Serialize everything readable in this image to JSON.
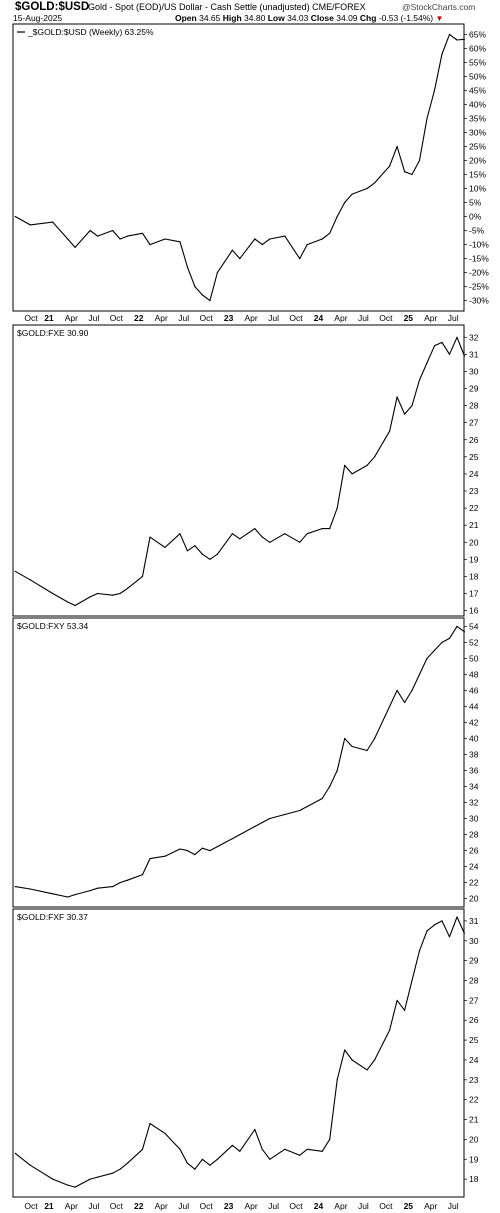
{
  "header": {
    "symbol": "$GOLD:$USD",
    "description": "Gold - Spot (EOD)/US Dollar - Cash Settle (unadjusted)  CME/FOREX",
    "date": "15-Aug-2025",
    "logo": "@StockCharts.com",
    "open_label": "Open",
    "open": "34.65",
    "high_label": "High",
    "high": "34.80",
    "low_label": "Low",
    "low": "34.03",
    "close_label": "Close",
    "close": "34.09",
    "chg_label": "Chg",
    "chg": "-0.53 (-1.54%)",
    "chg_icon": "down-triangle-icon",
    "down_color": "#c00000"
  },
  "x_axis": {
    "ticks": [
      {
        "label": "Oct",
        "t": 0.8
      },
      {
        "label": "21",
        "t": 1.0,
        "bold": true
      },
      {
        "label": "Apr",
        "t": 1.25
      },
      {
        "label": "Jul",
        "t": 1.5
      },
      {
        "label": "Oct",
        "t": 1.75
      },
      {
        "label": "22",
        "t": 2.0,
        "bold": true
      },
      {
        "label": "Apr",
        "t": 2.25
      },
      {
        "label": "Jul",
        "t": 2.5
      },
      {
        "label": "Oct",
        "t": 2.75
      },
      {
        "label": "23",
        "t": 3.0,
        "bold": true
      },
      {
        "label": "Apr",
        "t": 3.25
      },
      {
        "label": "Jul",
        "t": 3.5
      },
      {
        "label": "Oct",
        "t": 3.75
      },
      {
        "label": "24",
        "t": 4.0,
        "bold": true
      },
      {
        "label": "Apr",
        "t": 4.25
      },
      {
        "label": "Jul",
        "t": 4.5
      },
      {
        "label": "Oct",
        "t": 4.75
      },
      {
        "label": "25",
        "t": 5.0,
        "bold": true
      },
      {
        "label": "Apr",
        "t": 5.25
      },
      {
        "label": "Jul",
        "t": 5.5
      }
    ]
  },
  "chart_data": [
    {
      "type": "line",
      "title": "_$GOLD:$USD (Weekly) 63.25%",
      "ylim": [
        -33,
        68
      ],
      "yticks": [
        -30,
        -25,
        -20,
        -15,
        -10,
        -5,
        0,
        5,
        10,
        15,
        20,
        25,
        30,
        35,
        40,
        45,
        50,
        55,
        60,
        65
      ],
      "ytick_labels": [
        "-30%",
        "-25%",
        "-20%",
        "-15%",
        "-10%",
        "-5%",
        "0%",
        "5%",
        "10%",
        "15%",
        "20%",
        "25%",
        "30%",
        "35%",
        "40%",
        "45%",
        "50%",
        "55%",
        "60%",
        "65%"
      ],
      "x": [
        "Aug 2020",
        "Oct 2020",
        "Jan 2021",
        "Mar 2021",
        "Apr 2021",
        "Jun 2021",
        "Jul 2021",
        "Sep 2021",
        "Oct 2021",
        "Nov 2021",
        "Jan 2022",
        "Feb 2022",
        "Apr 2022",
        "Jun 2022",
        "Jul 2022",
        "Aug 2022",
        "Sep 2022",
        "Oct 2022",
        "Nov 2022",
        "Jan 2023",
        "Feb 2023",
        "Apr 2023",
        "May 2023",
        "Jun 2023",
        "Aug 2023",
        "Oct 2023",
        "Nov 2023",
        "Jan 2024",
        "Feb 2024",
        "Mar 2024",
        "Apr 2024",
        "May 2024",
        "Jul 2024",
        "Aug 2024",
        "Oct 2024",
        "Nov 2024",
        "Dec 2024",
        "Jan 2025",
        "Feb 2025",
        "Mar 2025",
        "Apr 2025",
        "May 2025",
        "Jun 2025",
        "Jul 2025",
        "Aug 2025"
      ],
      "values": [
        0,
        -3,
        -2,
        -8,
        -11,
        -5,
        -7,
        -5,
        -8,
        -7,
        -6,
        -10,
        -8,
        -9,
        -18,
        -25,
        -28,
        -30,
        -20,
        -12,
        -15,
        -8,
        -10,
        -8,
        -7,
        -15,
        -10,
        -8,
        -6,
        0,
        5,
        8,
        10,
        12,
        18,
        25,
        16,
        15,
        20,
        35,
        45,
        58,
        65,
        63,
        63.25
      ]
    },
    {
      "type": "line",
      "title": "$GOLD:FXE 30.90",
      "ylim": [
        15.8,
        32.6
      ],
      "yticks": [
        16,
        17,
        18,
        19,
        20,
        21,
        22,
        23,
        24,
        25,
        26,
        27,
        28,
        29,
        30,
        31,
        32
      ],
      "ytick_labels": [
        "16",
        "17",
        "18",
        "19",
        "20",
        "21",
        "22",
        "23",
        "24",
        "25",
        "26",
        "27",
        "28",
        "29",
        "30",
        "31",
        "32"
      ],
      "x": [
        "Aug 2020",
        "Oct 2020",
        "Jan 2021",
        "Mar 2021",
        "Apr 2021",
        "Jun 2021",
        "Jul 2021",
        "Sep 2021",
        "Oct 2021",
        "Nov 2021",
        "Jan 2022",
        "Feb 2022",
        "Apr 2022",
        "Jun 2022",
        "Jul 2022",
        "Aug 2022",
        "Sep 2022",
        "Oct 2022",
        "Nov 2022",
        "Jan 2023",
        "Feb 2023",
        "Apr 2023",
        "May 2023",
        "Jun 2023",
        "Aug 2023",
        "Oct 2023",
        "Nov 2023",
        "Jan 2024",
        "Feb 2024",
        "Mar 2024",
        "Apr 2024",
        "May 2024",
        "Jul 2024",
        "Aug 2024",
        "Oct 2024",
        "Nov 2024",
        "Dec 2024",
        "Jan 2025",
        "Feb 2025",
        "Mar 2025",
        "Apr 2025",
        "May 2025",
        "Jun 2025",
        "Jul 2025",
        "Aug 2025"
      ],
      "values": [
        18.3,
        17.8,
        17,
        16.5,
        16.3,
        16.8,
        17,
        16.9,
        17,
        17.3,
        18,
        20.3,
        19.7,
        20.5,
        19.5,
        19.8,
        19.3,
        19,
        19.3,
        20.5,
        20.2,
        20.8,
        20.3,
        20,
        20.5,
        20,
        20.5,
        20.8,
        20.8,
        22,
        24.5,
        24,
        24.5,
        25,
        26.5,
        28.5,
        27.5,
        28,
        29.5,
        30.5,
        31.5,
        31.7,
        31,
        32,
        30.9
      ]
    },
    {
      "type": "line",
      "title": "$GOLD:FXY 53.34",
      "ylim": [
        19.2,
        54.8
      ],
      "yticks": [
        20,
        22,
        24,
        26,
        28,
        30,
        32,
        34,
        36,
        38,
        40,
        42,
        44,
        46,
        48,
        50,
        52,
        54
      ],
      "ytick_labels": [
        "20",
        "22",
        "24",
        "26",
        "28",
        "30",
        "32",
        "34",
        "36",
        "38",
        "40",
        "42",
        "44",
        "46",
        "48",
        "50",
        "52",
        "54"
      ],
      "x": [
        "Aug 2020",
        "Oct 2020",
        "Jan 2021",
        "Mar 2021",
        "Apr 2021",
        "Jun 2021",
        "Jul 2021",
        "Sep 2021",
        "Oct 2021",
        "Nov 2021",
        "Jan 2022",
        "Feb 2022",
        "Apr 2022",
        "Jun 2022",
        "Jul 2022",
        "Aug 2022",
        "Sep 2022",
        "Oct 2022",
        "Nov 2022",
        "Jan 2023",
        "Feb 2023",
        "Apr 2023",
        "May 2023",
        "Jun 2023",
        "Aug 2023",
        "Oct 2023",
        "Nov 2023",
        "Jan 2024",
        "Feb 2024",
        "Mar 2024",
        "Apr 2024",
        "May 2024",
        "Jul 2024",
        "Aug 2024",
        "Oct 2024",
        "Nov 2024",
        "Dec 2024",
        "Jan 2025",
        "Feb 2025",
        "Mar 2025",
        "Apr 2025",
        "May 2025",
        "Jun 2025",
        "Jul 2025",
        "Aug 2025"
      ],
      "values": [
        21.5,
        21.2,
        20.6,
        20.2,
        20.5,
        21,
        21.3,
        21.5,
        22,
        22.3,
        23,
        25,
        25.3,
        26.2,
        26,
        25.5,
        26.3,
        26,
        26.5,
        27.5,
        28,
        29,
        29.5,
        30,
        30.5,
        31,
        31.5,
        32.5,
        34,
        36,
        40,
        39,
        38.5,
        40,
        44,
        46,
        44.5,
        46,
        48,
        50,
        51,
        52,
        52.5,
        54,
        53.34
      ]
    },
    {
      "type": "line",
      "title": "$GOLD:FXF 30.37",
      "ylim": [
        17.2,
        31.5
      ],
      "yticks": [
        18,
        19,
        20,
        21,
        22,
        23,
        24,
        25,
        26,
        27,
        28,
        29,
        30,
        31
      ],
      "ytick_labels": [
        "18",
        "19",
        "20",
        "21",
        "22",
        "23",
        "24",
        "25",
        "26",
        "27",
        "28",
        "29",
        "30",
        "31"
      ],
      "x": [
        "Aug 2020",
        "Oct 2020",
        "Jan 2021",
        "Mar 2021",
        "Apr 2021",
        "Jun 2021",
        "Jul 2021",
        "Sep 2021",
        "Oct 2021",
        "Nov 2021",
        "Jan 2022",
        "Feb 2022",
        "Apr 2022",
        "Jun 2022",
        "Jul 2022",
        "Aug 2022",
        "Sep 2022",
        "Oct 2022",
        "Nov 2022",
        "Jan 2023",
        "Feb 2023",
        "Apr 2023",
        "May 2023",
        "Jun 2023",
        "Aug 2023",
        "Oct 2023",
        "Nov 2023",
        "Jan 2024",
        "Feb 2024",
        "Mar 2024",
        "Apr 2024",
        "May 2024",
        "Jul 2024",
        "Aug 2024",
        "Oct 2024",
        "Nov 2024",
        "Dec 2024",
        "Jan 2025",
        "Feb 2025",
        "Mar 2025",
        "Apr 2025",
        "May 2025",
        "Jun 2025",
        "Jul 2025",
        "Aug 2025"
      ],
      "values": [
        19.3,
        18.7,
        18,
        17.7,
        17.6,
        18,
        18.1,
        18.3,
        18.5,
        18.8,
        19.5,
        20.8,
        20.3,
        19.5,
        18.8,
        18.5,
        19,
        18.7,
        19,
        19.7,
        19.4,
        20.5,
        19.5,
        19,
        19.5,
        19.2,
        19.5,
        19.4,
        20,
        23,
        24.5,
        24,
        23.5,
        24,
        25.5,
        27,
        26.5,
        28,
        29.5,
        30.5,
        30.8,
        31,
        30.2,
        31.2,
        30.37
      ]
    }
  ]
}
